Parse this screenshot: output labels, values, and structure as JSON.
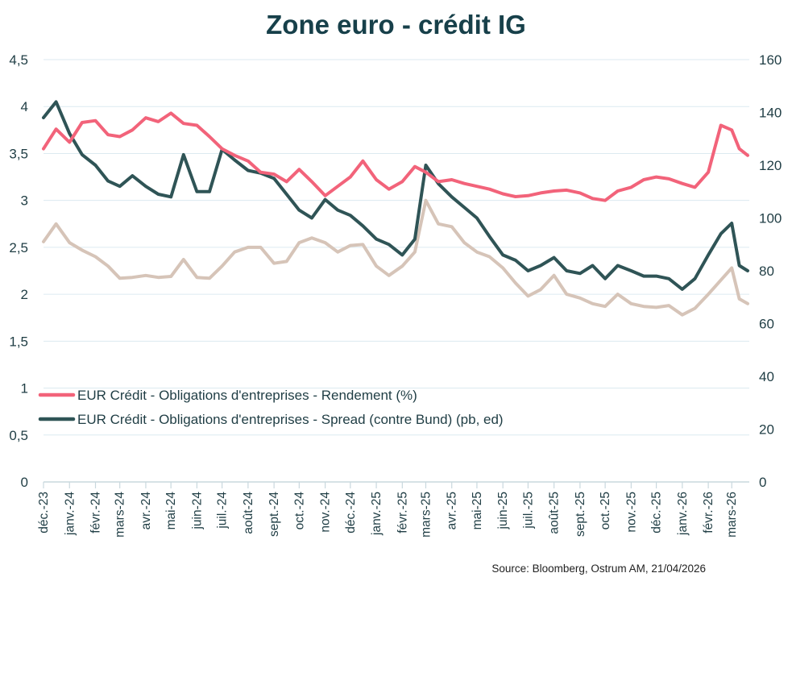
{
  "chart_data": {
    "type": "line",
    "title": "Zone euro - crédit IG",
    "source": "Source: Bloomberg,  Ostrum AM, 21/04/2026",
    "x": [
      "2023-12-01",
      "2023-12-16",
      "2024-01-01",
      "2024-01-16",
      "2024-02-01",
      "2024-02-16",
      "2024-03-01",
      "2024-03-16",
      "2024-04-01",
      "2024-04-16",
      "2024-05-01",
      "2024-05-16",
      "2024-06-01",
      "2024-06-16",
      "2024-07-01",
      "2024-07-16",
      "2024-08-01",
      "2024-08-16",
      "2024-09-01",
      "2024-09-16",
      "2024-10-01",
      "2024-10-16",
      "2024-11-01",
      "2024-11-16",
      "2024-12-01",
      "2024-12-16",
      "2025-01-01",
      "2025-01-16",
      "2025-02-01",
      "2025-02-16",
      "2025-03-01",
      "2025-03-16",
      "2025-04-01",
      "2025-04-16",
      "2025-05-01",
      "2025-05-16",
      "2025-06-01",
      "2025-06-16",
      "2025-07-01",
      "2025-07-16",
      "2025-08-01",
      "2025-08-16",
      "2025-09-01",
      "2025-09-16",
      "2025-10-01",
      "2025-10-16",
      "2025-11-01",
      "2025-11-16",
      "2025-12-01",
      "2025-12-16",
      "2026-01-01",
      "2026-01-16",
      "2026-02-01",
      "2026-02-16",
      "2026-03-01",
      "2026-03-10",
      "2026-03-20"
    ],
    "x_ticks": [
      "déc.-23",
      "janv.-24",
      "févr.-24",
      "mars-24",
      "avr.-24",
      "mai-24",
      "juin-24",
      "juil.-24",
      "août-24",
      "sept.-24",
      "oct.-24",
      "nov.-24",
      "déc.-24",
      "janv.-25",
      "févr.-25",
      "mars-25",
      "avr.-25",
      "mai-25",
      "juin-25",
      "juil.-25",
      "août-25",
      "sept.-25",
      "oct.-25",
      "nov.-25",
      "déc.-25",
      "janv.-26",
      "févr.-26",
      "mars-26"
    ],
    "y_left": {
      "ylim": [
        0,
        4.5
      ],
      "ticks": [
        "0",
        "0,5",
        "1",
        "1,5",
        "2",
        "2,5",
        "3",
        "3,5",
        "4",
        "4,5"
      ]
    },
    "y_right": {
      "ylim": [
        0,
        160
      ],
      "ticks": [
        "0",
        "20",
        "40",
        "60",
        "80",
        "100",
        "120",
        "140",
        "160"
      ]
    },
    "grid": true,
    "legend_position": "lower-left inside plot",
    "series": [
      {
        "name": "EUR Crédit - Obligations d'entreprises - Rendement  (%)",
        "axis": "left",
        "color": "#f2637a",
        "values": [
          3.55,
          3.76,
          3.62,
          3.83,
          3.85,
          3.7,
          3.68,
          3.75,
          3.88,
          3.84,
          3.93,
          3.82,
          3.8,
          3.68,
          3.55,
          3.48,
          3.42,
          3.3,
          3.28,
          3.2,
          3.33,
          3.2,
          3.05,
          3.15,
          3.25,
          3.42,
          3.22,
          3.12,
          3.2,
          3.36,
          3.3,
          3.2,
          3.22,
          3.18,
          3.15,
          3.12,
          3.07,
          3.04,
          3.05,
          3.08,
          3.1,
          3.11,
          3.08,
          3.02,
          3.0,
          3.1,
          3.14,
          3.22,
          3.25,
          3.23,
          3.18,
          3.14,
          3.3,
          3.8,
          3.75,
          3.55,
          3.48
        ]
      },
      {
        "name": "EUR Crédit - Obligations d'entreprises - Spread (contre Bund)  (pb, ed)",
        "axis": "right",
        "color": "#2f5456",
        "values": [
          138,
          144,
          132,
          124,
          120,
          114,
          112,
          116,
          112,
          109,
          108,
          124,
          110,
          110,
          126,
          122,
          118,
          117,
          115,
          109,
          103,
          100,
          107,
          103,
          101,
          97,
          92,
          90,
          86,
          92,
          120,
          113,
          108,
          104,
          100,
          93,
          86,
          84,
          80,
          82,
          85,
          80,
          79,
          82,
          77,
          82,
          80,
          78,
          78,
          77,
          73,
          77,
          86,
          94,
          98,
          82,
          80
        ]
      },
      {
        "axis": "left",
        "color": "#d6c4b8",
        "values": [
          2.56,
          2.75,
          2.55,
          2.47,
          2.4,
          2.3,
          2.17,
          2.18,
          2.2,
          2.18,
          2.19,
          2.37,
          2.18,
          2.17,
          2.3,
          2.45,
          2.5,
          2.5,
          2.33,
          2.35,
          2.55,
          2.6,
          2.55,
          2.45,
          2.52,
          2.53,
          2.3,
          2.2,
          2.3,
          2.45,
          3.0,
          2.75,
          2.72,
          2.55,
          2.45,
          2.4,
          2.28,
          2.12,
          1.98,
          2.05,
          2.2,
          2.0,
          1.96,
          1.9,
          1.87,
          2.0,
          1.9,
          1.87,
          1.86,
          1.88,
          1.78,
          1.85,
          2.0,
          2.15,
          2.28,
          1.95,
          1.9
        ]
      }
    ]
  }
}
